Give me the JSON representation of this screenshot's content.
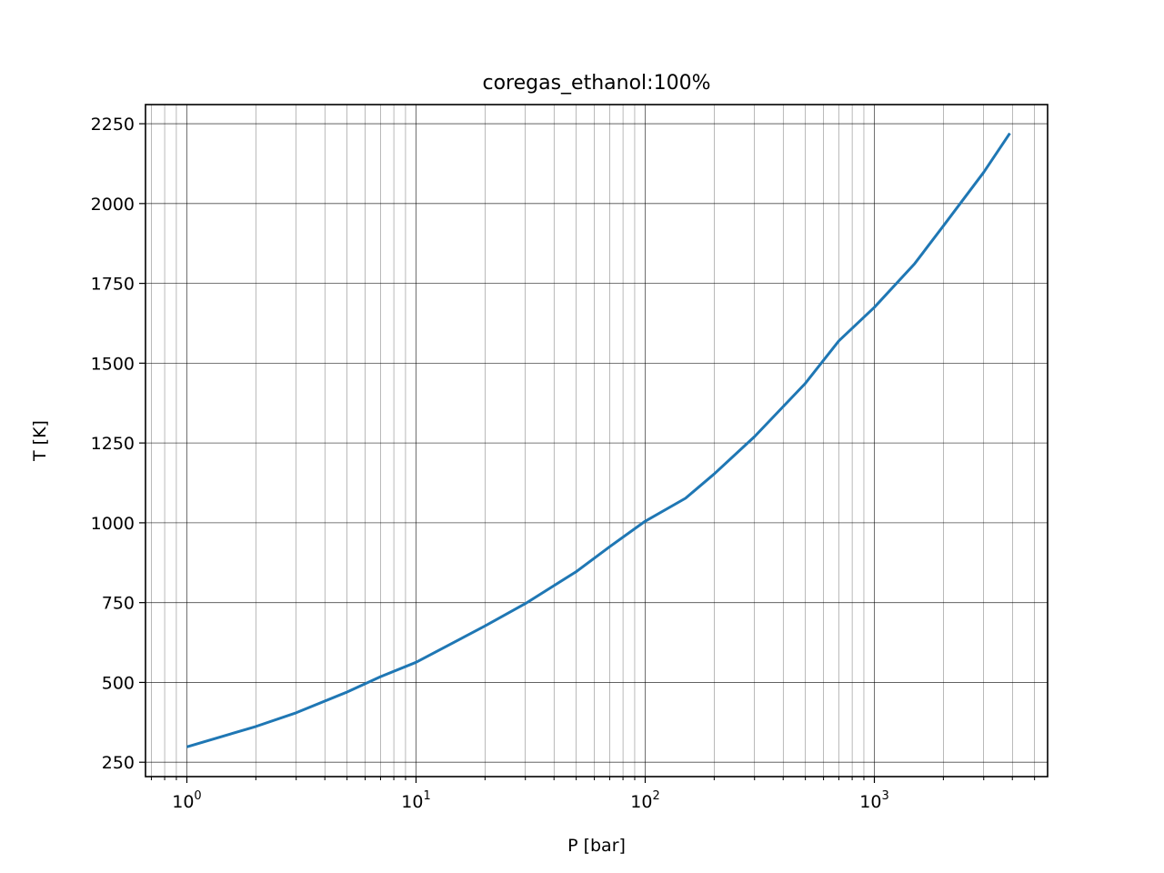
{
  "chart_data": {
    "type": "line",
    "title": "coregas_ethanol:100%",
    "xlabel": "P [bar]",
    "ylabel": "T [K]",
    "xscale": "log",
    "xlim": [
      0.66,
      5700
    ],
    "ylim": [
      205,
      2310
    ],
    "grid": "major and minor",
    "x_tick_labels": [
      {
        "value": 1,
        "base": "10",
        "exp": "0"
      },
      {
        "value": 10,
        "base": "10",
        "exp": "1"
      },
      {
        "value": 100,
        "base": "10",
        "exp": "2"
      },
      {
        "value": 1000,
        "base": "10",
        "exp": "3"
      }
    ],
    "y_ticks": [
      250,
      500,
      750,
      1000,
      1250,
      1500,
      1750,
      2000,
      2250
    ],
    "series": [
      {
        "color": "#1f77b4",
        "points": [
          [
            1,
            298
          ],
          [
            2,
            362
          ],
          [
            3,
            405
          ],
          [
            5,
            470
          ],
          [
            7,
            518
          ],
          [
            10,
            563
          ],
          [
            20,
            677
          ],
          [
            30,
            747
          ],
          [
            50,
            847
          ],
          [
            70,
            925
          ],
          [
            100,
            1005
          ],
          [
            150,
            1077
          ],
          [
            200,
            1153
          ],
          [
            300,
            1270
          ],
          [
            500,
            1437
          ],
          [
            700,
            1570
          ],
          [
            1000,
            1675
          ],
          [
            1500,
            1812
          ],
          [
            2000,
            1930
          ],
          [
            3000,
            2098
          ],
          [
            3900,
            2220
          ]
        ]
      }
    ]
  }
}
